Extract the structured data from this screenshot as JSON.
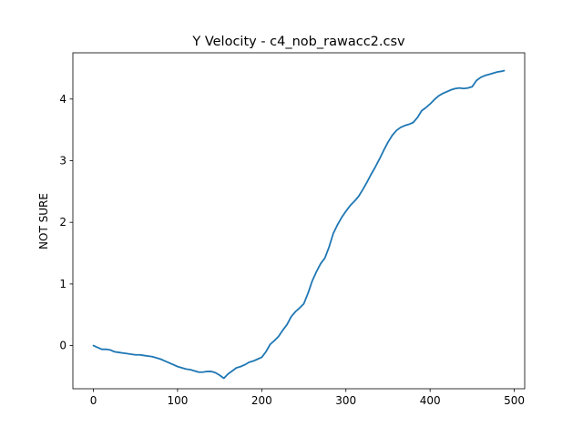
{
  "chart_data": {
    "type": "line",
    "title": "Y Velocity - c4_nob_rawacc2.csv",
    "xlabel": "",
    "ylabel": "NOT SURE",
    "xlim": [
      -24.4,
      512.4
    ],
    "ylim": [
      -0.7,
      4.75
    ],
    "xticks": [
      0,
      100,
      200,
      300,
      400,
      500
    ],
    "yticks": [
      0,
      1,
      2,
      3,
      4
    ],
    "grid": false,
    "legend": "none",
    "colors": {
      "line": "#1f77b4",
      "axes": "#000000",
      "background": "#ffffff"
    },
    "series": [
      {
        "x": [
          0,
          5,
          10,
          15,
          20,
          25,
          30,
          35,
          40,
          45,
          50,
          55,
          60,
          65,
          70,
          75,
          80,
          85,
          90,
          95,
          100,
          105,
          110,
          115,
          120,
          125,
          130,
          135,
          140,
          145,
          150,
          155,
          160,
          165,
          170,
          175,
          180,
          185,
          190,
          195,
          200,
          205,
          210,
          215,
          220,
          225,
          230,
          235,
          240,
          245,
          250,
          255,
          260,
          265,
          270,
          275,
          280,
          285,
          290,
          295,
          300,
          305,
          310,
          315,
          320,
          325,
          330,
          335,
          340,
          345,
          350,
          355,
          360,
          365,
          370,
          375,
          380,
          385,
          390,
          395,
          400,
          405,
          410,
          415,
          420,
          425,
          430,
          435,
          440,
          445,
          450,
          455,
          460,
          465,
          470,
          475,
          480,
          485,
          488
        ],
        "y": [
          0.0,
          -0.03,
          -0.06,
          -0.06,
          -0.07,
          -0.1,
          -0.11,
          -0.12,
          -0.13,
          -0.14,
          -0.15,
          -0.15,
          -0.16,
          -0.17,
          -0.18,
          -0.2,
          -0.22,
          -0.25,
          -0.28,
          -0.31,
          -0.34,
          -0.36,
          -0.38,
          -0.39,
          -0.41,
          -0.43,
          -0.43,
          -0.42,
          -0.42,
          -0.44,
          -0.48,
          -0.53,
          -0.46,
          -0.41,
          -0.36,
          -0.34,
          -0.31,
          -0.27,
          -0.25,
          -0.22,
          -0.19,
          -0.1,
          0.02,
          0.08,
          0.15,
          0.25,
          0.34,
          0.47,
          0.55,
          0.61,
          0.68,
          0.85,
          1.05,
          1.2,
          1.33,
          1.42,
          1.6,
          1.82,
          1.96,
          2.08,
          2.18,
          2.27,
          2.34,
          2.42,
          2.53,
          2.65,
          2.78,
          2.9,
          3.03,
          3.17,
          3.3,
          3.41,
          3.49,
          3.54,
          3.57,
          3.59,
          3.62,
          3.7,
          3.81,
          3.86,
          3.92,
          3.99,
          4.05,
          4.09,
          4.12,
          4.15,
          4.17,
          4.18,
          4.17,
          4.18,
          4.2,
          4.3,
          4.35,
          4.38,
          4.4,
          4.42,
          4.44,
          4.45,
          4.46
        ]
      }
    ]
  }
}
